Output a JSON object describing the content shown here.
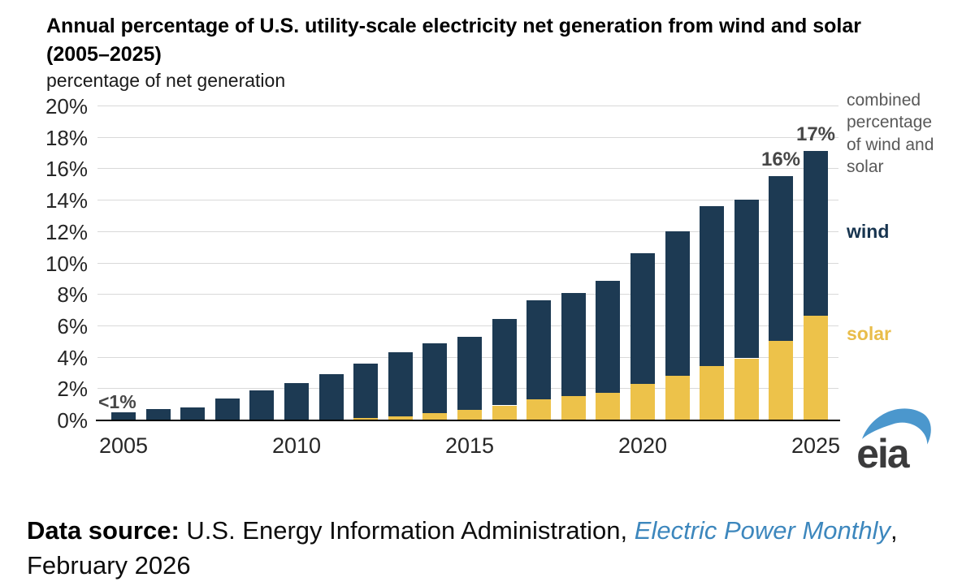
{
  "header": {
    "title": "Annual percentage of U.S. utility-scale electricity net generation from wind and solar",
    "title_range": "(2005–2025)",
    "subtitle": "percentage of net generation"
  },
  "chart_data": {
    "type": "bar",
    "stacked": true,
    "title": "Annual percentage of U.S. utility-scale electricity net generation from wind and solar (2005–2025)",
    "ylabel": "percentage of net generation",
    "xlabel": "",
    "grid": true,
    "legend_position": "right",
    "x": [
      2005,
      2006,
      2007,
      2008,
      2009,
      2010,
      2011,
      2012,
      2013,
      2014,
      2015,
      2016,
      2017,
      2018,
      2019,
      2020,
      2021,
      2022,
      2023,
      2024,
      2025
    ],
    "series": [
      {
        "name": "solar",
        "color": "#edc24a",
        "values": [
          0,
          0,
          0,
          0,
          0,
          0,
          0,
          0.1,
          0.2,
          0.4,
          0.6,
          0.9,
          1.3,
          1.5,
          1.7,
          2.25,
          2.8,
          3.4,
          3.9,
          5.0,
          6.6
        ]
      },
      {
        "name": "wind",
        "color": "#1d3a53",
        "values": [
          0.45,
          0.65,
          0.8,
          1.35,
          1.85,
          2.3,
          2.9,
          3.45,
          4.1,
          4.45,
          4.65,
          5.5,
          6.3,
          6.55,
          7.15,
          8.35,
          9.2,
          10.2,
          10.1,
          10.5,
          10.5
        ]
      }
    ],
    "ylim": [
      0,
      20
    ],
    "ytick_step": 2,
    "ytick_suffix": "%",
    "xticks": [
      2005,
      2010,
      2015,
      2020,
      2025
    ],
    "annotations": [
      {
        "text": "<1%",
        "year": 2005,
        "anchor": "left"
      },
      {
        "text": "16%",
        "year": 2024,
        "anchor": "center"
      },
      {
        "text": "17%",
        "year": 2025,
        "anchor": "center"
      }
    ]
  },
  "legend": {
    "combined": "combined percentage of wind and solar",
    "wind": "wind",
    "solar": "solar"
  },
  "logo": {
    "text": "eia"
  },
  "footer": {
    "label": "Data source:",
    "pre": " U.S. Energy Information Administration, ",
    "source": "Electric Power Monthly",
    "post": ", February 2026"
  },
  "colors": {
    "wind": "#1d3a53",
    "solar": "#edc24a",
    "gridline": "#d9d9d9",
    "legend_gray": "#595959",
    "footer_blue": "#3d87bd",
    "logo_blue": "#4b97cd"
  }
}
